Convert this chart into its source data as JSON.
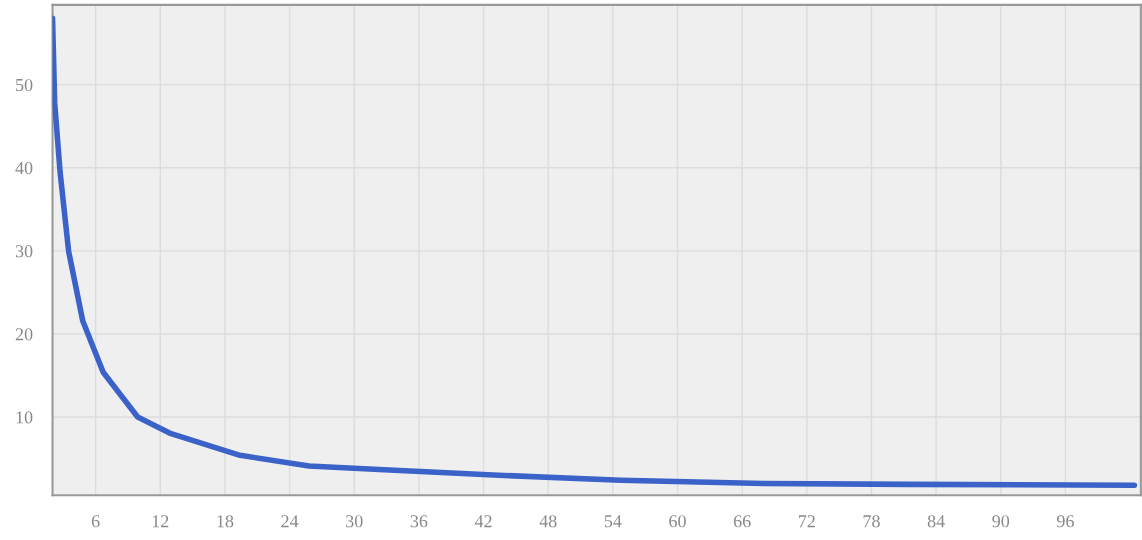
{
  "chart_data": {
    "type": "line",
    "x": [
      2.0,
      2.2,
      2.7,
      3.5,
      4.8,
      6.7,
      9.9,
      13,
      19.4,
      25.8,
      32.3,
      43.4,
      54.7,
      68,
      81.6,
      102.4
    ],
    "series": [
      {
        "color": "#3a62c8",
        "values": [
          58,
          47.8,
          39.5,
          29.9,
          21.6,
          15.4,
          10,
          8,
          5.4,
          4.1,
          3.7,
          3.0,
          2.4,
          2.0,
          1.9,
          1.8
        ]
      }
    ],
    "xlim": [
      2,
      103
    ],
    "xticks": [
      6,
      12,
      18,
      24,
      30,
      36,
      42,
      48,
      54,
      60,
      66,
      72,
      78,
      84,
      90,
      96
    ],
    "ylim": [
      0.6,
      59.6
    ],
    "yticks": [
      10,
      20,
      30,
      40,
      50
    ],
    "grid": true,
    "marker": "none",
    "line_style": "solid"
  }
}
